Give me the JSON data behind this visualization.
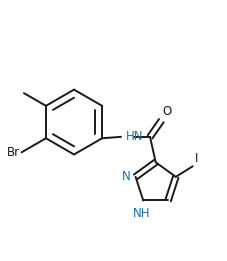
{
  "background_color": "#ffffff",
  "bond_color": "#1a1a1a",
  "atom_colors": {
    "Br": "#1a1a1a",
    "N": "#1a6fa8",
    "O": "#1a1a1a",
    "I": "#1a1a1a",
    "C": "#1a1a1a"
  },
  "line_width": 1.4,
  "font_size": 8.5
}
